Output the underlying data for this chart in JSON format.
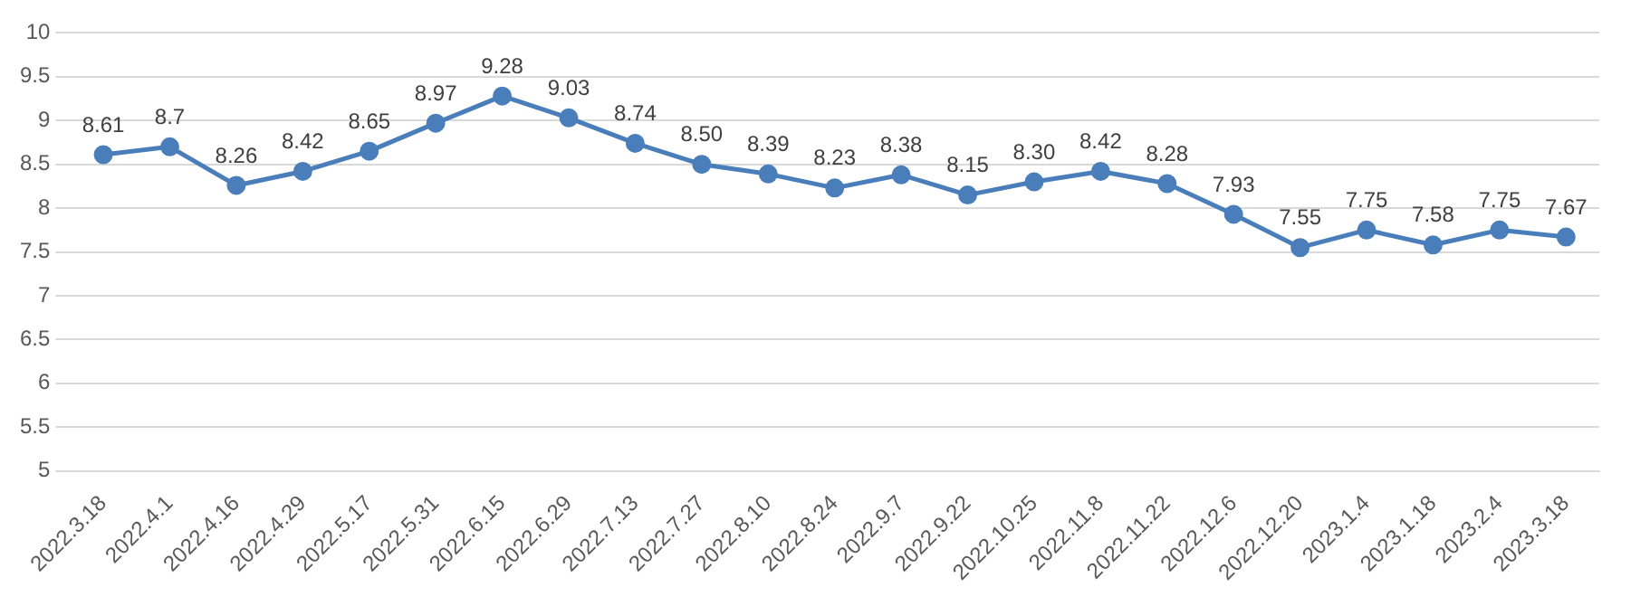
{
  "chart_data": {
    "type": "line",
    "categories": [
      "2022.3.18",
      "2022.4.1",
      "2022.4.16",
      "2022.4.29",
      "2022.5.17",
      "2022.5.31",
      "2022.6.15",
      "2022.6.29",
      "2022.7.13",
      "2022.7.27",
      "2022.8.10",
      "2022.8.24",
      "2022.9.7",
      "2022.9.22",
      "2022.10.25",
      "2022.11.8",
      "2022.11.22",
      "2022.12.6",
      "2022.12.20",
      "2023.1.4",
      "2023.1.18",
      "2023.2.4",
      "2023.3.18"
    ],
    "series": [
      {
        "color": "#4a7ebb",
        "values": [
          8.61,
          8.7,
          8.26,
          8.42,
          8.65,
          8.97,
          9.28,
          9.03,
          8.74,
          8.5,
          8.39,
          8.23,
          8.38,
          8.15,
          8.3,
          8.42,
          8.28,
          7.93,
          7.55,
          7.75,
          7.58,
          7.75,
          7.67
        ],
        "value_labels": [
          "8.61",
          "8.7",
          "8.26",
          "8.42",
          "8.65",
          "8.97",
          "9.28",
          "9.03",
          "8.74",
          "8.50",
          "8.39",
          "8.23",
          "8.38",
          "8.15",
          "8.30",
          "8.42",
          "8.28",
          "7.93",
          "7.55",
          "7.75",
          "7.58",
          "7.75",
          "7.67"
        ]
      }
    ],
    "ylim": [
      5,
      10
    ],
    "yticks": [
      5,
      5.5,
      6,
      6.5,
      7,
      7.5,
      8,
      8.5,
      9,
      9.5,
      10
    ],
    "grid": "y",
    "legend": false,
    "marker": "circle",
    "line_style": "solid"
  }
}
